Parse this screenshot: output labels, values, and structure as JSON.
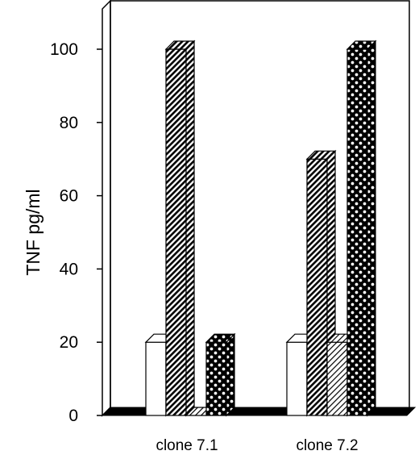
{
  "chart_data": {
    "type": "bar",
    "title": "",
    "xlabel": "",
    "ylabel": "TNF pg/ml",
    "ylim": [
      0,
      100
    ],
    "yticks": [
      "0",
      "20",
      "40",
      "60",
      "80",
      "100"
    ],
    "categories": [
      "clone 7.1",
      "clone 7.2"
    ],
    "series": [
      {
        "values": [
          20,
          20
        ],
        "fill": "white"
      },
      {
        "values": [
          100,
          70
        ],
        "fill": "dense-diagonal-hatch"
      },
      {
        "values": [
          0,
          20
        ],
        "fill": "light-diagonal-hatch"
      },
      {
        "values": [
          20,
          100
        ],
        "fill": "dark-crosshatch-dots"
      }
    ],
    "grid": false,
    "legend": "none",
    "colors": {
      "ink": "#000000",
      "background": "#ffffff"
    }
  }
}
